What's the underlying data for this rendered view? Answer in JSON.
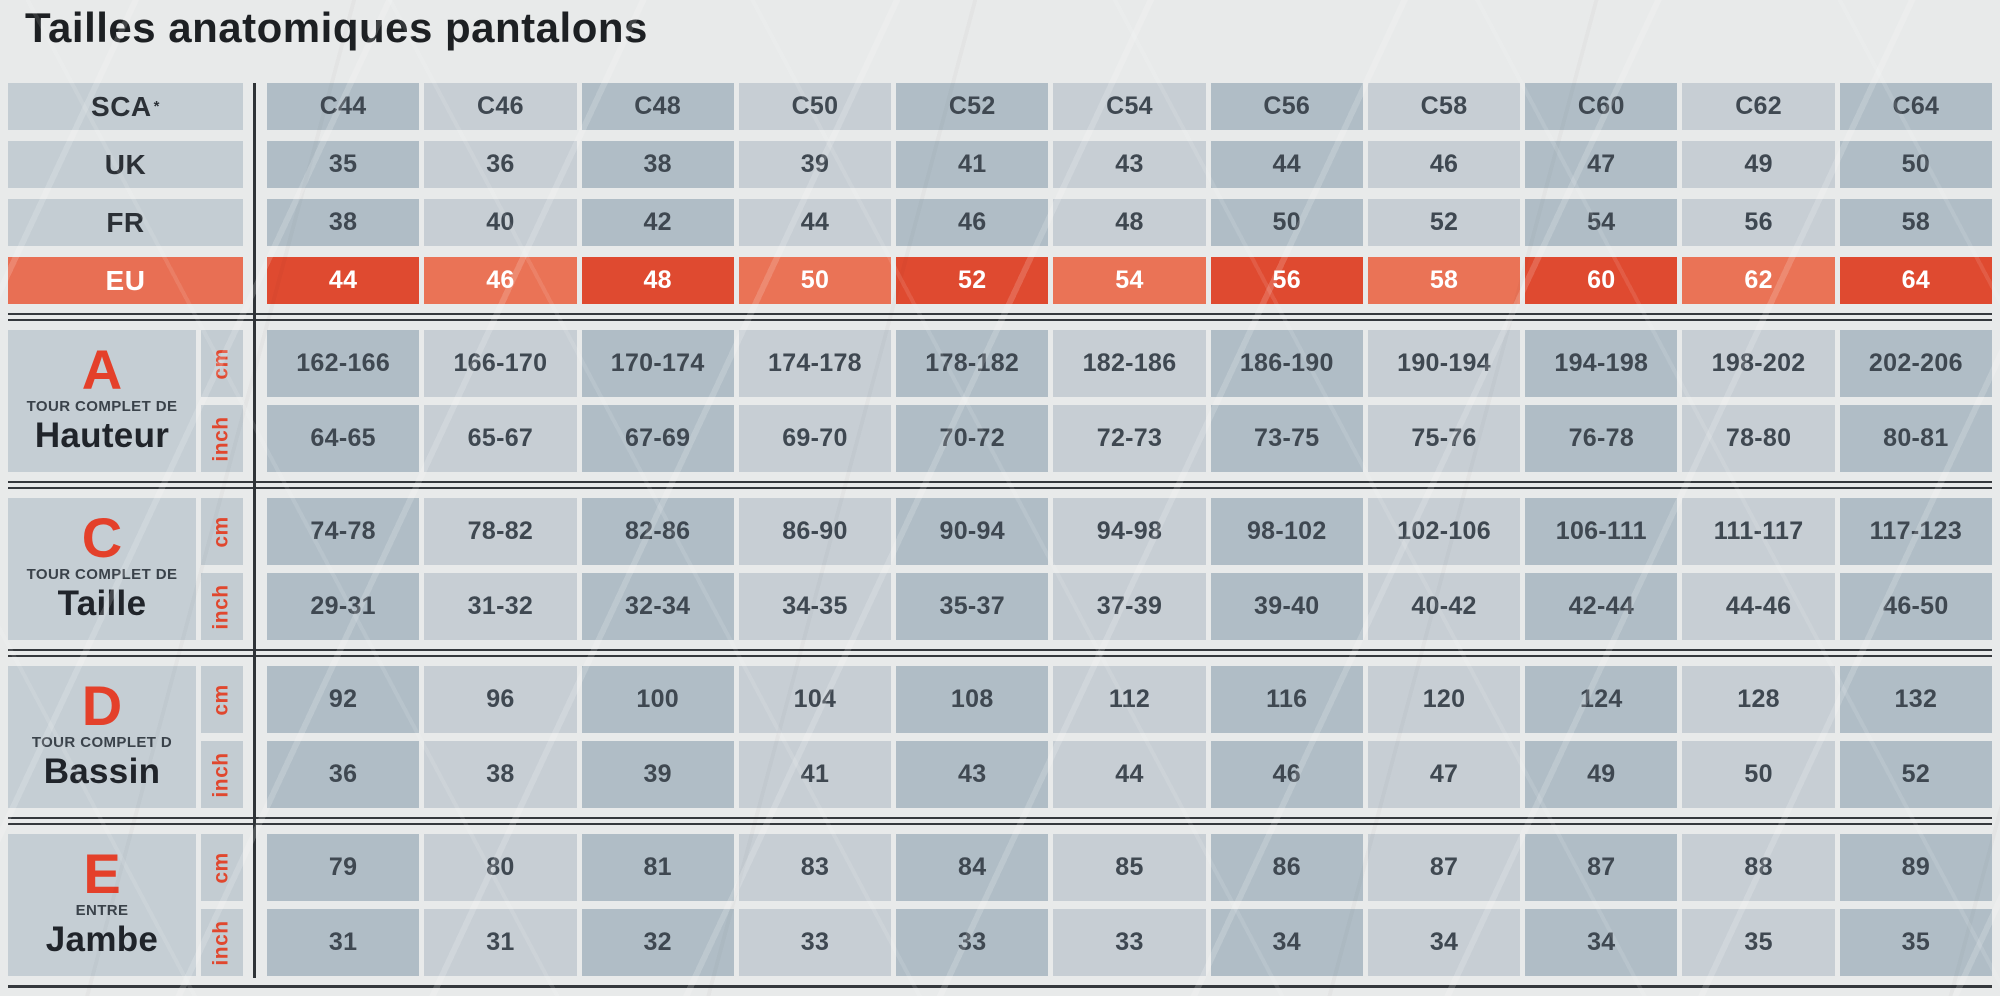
{
  "title": "Tailles anatomiques pantalons",
  "colors": {
    "page_bg": "#e8eaea",
    "cell_dark_gray": "#b0bdc6",
    "cell_light_gray": "#c7ced4",
    "label_gray": "#c4cdd3",
    "accent_orange": "#e4402a",
    "eu_label_orange": "#e86f54",
    "eu_cell_dark": "#df4a30",
    "eu_cell_light": "#ea7356",
    "value_text": "#3f4851",
    "divider": "#35393d"
  },
  "header_rows": [
    {
      "label": "SCA",
      "sup": "*",
      "highlight": false,
      "values": [
        "C44",
        "C46",
        "C48",
        "C50",
        "C52",
        "C54",
        "C56",
        "C58",
        "C60",
        "C62",
        "C64"
      ]
    },
    {
      "label": "UK",
      "highlight": false,
      "values": [
        "35",
        "36",
        "38",
        "39",
        "41",
        "43",
        "44",
        "46",
        "47",
        "49",
        "50"
      ]
    },
    {
      "label": "FR",
      "highlight": false,
      "values": [
        "38",
        "40",
        "42",
        "44",
        "46",
        "48",
        "50",
        "52",
        "54",
        "56",
        "58"
      ]
    },
    {
      "label": "EU",
      "highlight": true,
      "values": [
        "44",
        "46",
        "48",
        "50",
        "52",
        "54",
        "56",
        "58",
        "60",
        "62",
        "64"
      ]
    }
  ],
  "sections": [
    {
      "letter": "A",
      "subtitle": "TOUR COMPLET DE",
      "name": "Hauteur",
      "rows": [
        {
          "unit": "cm",
          "values": [
            "162-166",
            "166-170",
            "170-174",
            "174-178",
            "178-182",
            "182-186",
            "186-190",
            "190-194",
            "194-198",
            "198-202",
            "202-206"
          ]
        },
        {
          "unit": "inch",
          "values": [
            "64-65",
            "65-67",
            "67-69",
            "69-70",
            "70-72",
            "72-73",
            "73-75",
            "75-76",
            "76-78",
            "78-80",
            "80-81"
          ]
        }
      ]
    },
    {
      "letter": "C",
      "subtitle": "TOUR COMPLET DE",
      "name": "Taille",
      "rows": [
        {
          "unit": "cm",
          "values": [
            "74-78",
            "78-82",
            "82-86",
            "86-90",
            "90-94",
            "94-98",
            "98-102",
            "102-106",
            "106-111",
            "111-117",
            "117-123"
          ]
        },
        {
          "unit": "inch",
          "values": [
            "29-31",
            "31-32",
            "32-34",
            "34-35",
            "35-37",
            "37-39",
            "39-40",
            "40-42",
            "42-44",
            "44-46",
            "46-50"
          ]
        }
      ]
    },
    {
      "letter": "D",
      "subtitle": "TOUR COMPLET D",
      "name": "Bassin",
      "rows": [
        {
          "unit": "cm",
          "values": [
            "92",
            "96",
            "100",
            "104",
            "108",
            "112",
            "116",
            "120",
            "124",
            "128",
            "132"
          ]
        },
        {
          "unit": "inch",
          "values": [
            "36",
            "38",
            "39",
            "41",
            "43",
            "44",
            "46",
            "47",
            "49",
            "50",
            "52"
          ]
        }
      ]
    },
    {
      "letter": "E",
      "subtitle": "ENTRE",
      "name": "Jambe",
      "rows": [
        {
          "unit": "cm",
          "values": [
            "79",
            "80",
            "81",
            "83",
            "84",
            "85",
            "86",
            "87",
            "87",
            "88",
            "89"
          ]
        },
        {
          "unit": "inch",
          "values": [
            "31",
            "31",
            "32",
            "33",
            "33",
            "33",
            "34",
            "34",
            "34",
            "35",
            "35"
          ]
        }
      ]
    }
  ]
}
